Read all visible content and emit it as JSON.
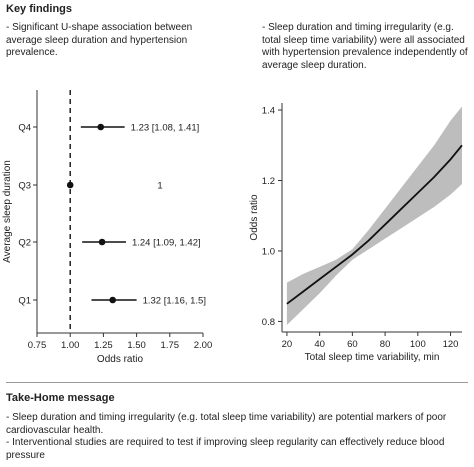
{
  "key_findings": {
    "title": "Key findings",
    "left_text": "- Significant U-shape association between average sleep duration and hypertension prevalence.",
    "right_text": "- Sleep duration and timing irregularity (e.g. total sleep time variability) were all associated with hypertension prevalence independently of average sleep duration."
  },
  "take_home": {
    "title": "Take-Home message",
    "line1": "- Sleep duration and timing irregularity (e.g. total sleep time variability) are potential markers of poor cardiovascular health.",
    "line2": "- Interventional studies are required to test if improving sleep regularity can effectively reduce blood pressure"
  },
  "colors": {
    "line": "#111111",
    "band": "#bdbdbd",
    "divider": "#9a9a9a"
  },
  "chart_data": [
    {
      "type": "forest",
      "xlabel": "Odds ratio",
      "ylabel": "Average sleep duration",
      "xlim": [
        0.75,
        2.0
      ],
      "xticks": [
        "0.75",
        "1.00",
        "1.25",
        "1.50",
        "1.75",
        "2.00"
      ],
      "xtick_values": [
        0.75,
        1.0,
        1.25,
        1.5,
        1.75,
        2.0
      ],
      "reference_line": 1.0,
      "categories": [
        "Q4",
        "Q3",
        "Q2",
        "Q1"
      ],
      "points": [
        {
          "category": "Q4",
          "or": 1.23,
          "lo": 1.08,
          "hi": 1.41,
          "label": "1.23 [1.08, 1.41]"
        },
        {
          "category": "Q3",
          "or": 1.0,
          "lo": 1.0,
          "hi": 1.0,
          "label": "1"
        },
        {
          "category": "Q2",
          "or": 1.24,
          "lo": 1.09,
          "hi": 1.42,
          "label": "1.24 [1.09, 1.42]"
        },
        {
          "category": "Q1",
          "or": 1.32,
          "lo": 1.16,
          "hi": 1.5,
          "label": "1.32 [1.16, 1.5]"
        }
      ]
    },
    {
      "type": "line",
      "xlabel": "Total sleep time variability, min",
      "ylabel": "Odds ratio",
      "xlim": [
        17,
        127
      ],
      "ylim": [
        0.77,
        1.42
      ],
      "xticks": [
        "20",
        "40",
        "60",
        "80",
        "100",
        "120"
      ],
      "xtick_values": [
        20,
        40,
        60,
        80,
        100,
        120
      ],
      "yticks": [
        "0.8",
        "1.0",
        "1.2",
        "1.4"
      ],
      "ytick_values": [
        0.8,
        1.0,
        1.2,
        1.4
      ],
      "x": [
        20,
        30,
        40,
        50,
        60,
        70,
        80,
        90,
        100,
        110,
        120,
        127
      ],
      "y": [
        0.85,
        0.885,
        0.92,
        0.955,
        0.99,
        1.03,
        1.075,
        1.12,
        1.165,
        1.21,
        1.26,
        1.3
      ],
      "ci_lower": [
        0.79,
        0.835,
        0.88,
        0.93,
        0.975,
        1.005,
        1.035,
        1.065,
        1.095,
        1.125,
        1.16,
        1.19
      ],
      "ci_upper": [
        0.91,
        0.935,
        0.955,
        0.975,
        1.005,
        1.06,
        1.12,
        1.18,
        1.24,
        1.3,
        1.37,
        1.41
      ]
    }
  ]
}
